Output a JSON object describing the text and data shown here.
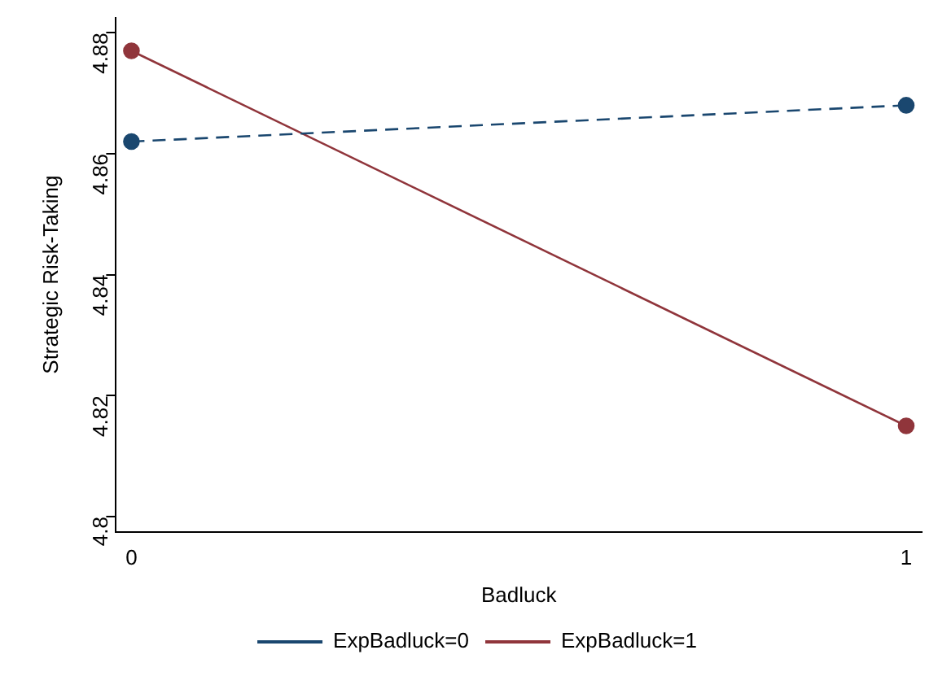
{
  "chart_data": {
    "type": "line",
    "xlabel": "Badluck",
    "ylabel": "Strategic Risk-Taking",
    "x": [
      0,
      1
    ],
    "xlim": [
      -0.02,
      1.02
    ],
    "xticks": [
      0,
      1
    ],
    "ylim": [
      4.7975,
      4.8825
    ],
    "yticks": [
      4.8,
      4.82,
      4.84,
      4.86,
      4.88
    ],
    "series": [
      {
        "name": "ExpBadluck=0",
        "color": "#1a476f",
        "values": [
          4.862,
          4.868
        ],
        "line_style": "dashed"
      },
      {
        "name": "ExpBadluck=1",
        "color": "#90353b",
        "values": [
          4.877,
          4.815
        ],
        "line_style": "solid"
      }
    ],
    "marker": "circle",
    "legend": "bottom",
    "grid": false
  }
}
